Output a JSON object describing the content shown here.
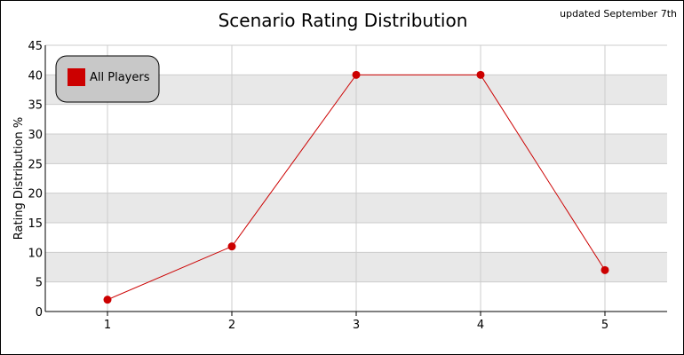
{
  "chart_data": {
    "type": "line",
    "title": "Scenario Rating Distribution",
    "subtitle": "updated September 7th",
    "xlabel": "",
    "ylabel": "Rating Distribution %",
    "x": [
      1,
      2,
      3,
      4,
      5
    ],
    "xlim": [
      0.5,
      5.5
    ],
    "ylim": [
      0,
      45
    ],
    "yticks": [
      0,
      5,
      10,
      15,
      20,
      25,
      30,
      35,
      40,
      45
    ],
    "series": [
      {
        "name": "All Players",
        "values": [
          2,
          11,
          40,
          40,
          7
        ],
        "color": "#cc0000"
      }
    ],
    "grid": true,
    "band_color": "#e8e8e8",
    "legend_position": "top-left"
  }
}
